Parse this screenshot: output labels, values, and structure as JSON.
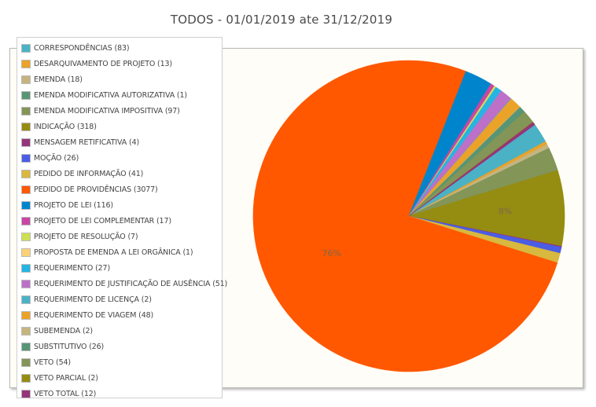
{
  "chart_data": {
    "type": "pie",
    "title": "TODOS - 01/01/2019 ate 31/12/2019",
    "start_angle_deg": -36,
    "slices": [
      {
        "label": "CORRESPONDÊNCIAS (83)",
        "value": 83,
        "color": "#4bb2c5"
      },
      {
        "label": "DESARQUIVAMENTO DE PROJETO (13)",
        "value": 13,
        "color": "#eaa228"
      },
      {
        "label": "EMENDA (18)",
        "value": 18,
        "color": "#c5b47f"
      },
      {
        "label": "EMENDA MODIFICATIVA AUTORIZATIVA (1)",
        "value": 1,
        "color": "#579575"
      },
      {
        "label": "EMENDA MODIFICATIVA IMPOSITIVA (97)",
        "value": 97,
        "color": "#839557"
      },
      {
        "label": "INDICAÇÃO (318)",
        "value": 318,
        "color": "#958c12"
      },
      {
        "label": "MENSAGEM RETIFICATIVA (4)",
        "value": 4,
        "color": "#953579"
      },
      {
        "label": "MOÇÃO (26)",
        "value": 26,
        "color": "#4b5de4"
      },
      {
        "label": "PEDIDO DE INFORMAÇÃO (41)",
        "value": 41,
        "color": "#d8b83f"
      },
      {
        "label": "PEDIDO DE PROVIDÊNCIAS (3077)",
        "value": 3077,
        "color": "#ff5800"
      },
      {
        "label": "PROJETO DE LEI (116)",
        "value": 116,
        "color": "#0085cc"
      },
      {
        "label": "PROJETO DE LEI COMPLEMENTAR (17)",
        "value": 17,
        "color": "#c747a3"
      },
      {
        "label": "PROJETO DE RESOLUÇÃO (7)",
        "value": 7,
        "color": "#cddf54"
      },
      {
        "label": "PROPOSTA DE EMENDA A LEI ORGÂNICA (1)",
        "value": 1,
        "color": "#fbd178"
      },
      {
        "label": "REQUERIMENTO (27)",
        "value": 27,
        "color": "#26b4e3"
      },
      {
        "label": "REQUERIMENTO DE JUSTIFICAÇÃO DE AUSÊNCIA (51)",
        "value": 51,
        "color": "#bd70c7"
      },
      {
        "label": "REQUERIMENTO DE LICENÇA (2)",
        "value": 2,
        "color": "#4bb2c5"
      },
      {
        "label": "REQUERIMENTO DE VIAGEM (48)",
        "value": 48,
        "color": "#eaa228"
      },
      {
        "label": "SUBEMENDA (2)",
        "value": 2,
        "color": "#c5b47f"
      },
      {
        "label": "SUBSTITUTIVO (26)",
        "value": 26,
        "color": "#579575"
      },
      {
        "label": "VETO (54)",
        "value": 54,
        "color": "#839557"
      },
      {
        "label": "VETO PARCIAL (2)",
        "value": 2,
        "color": "#958c12"
      },
      {
        "label": "VETO TOTAL (12)",
        "value": 12,
        "color": "#953579"
      }
    ],
    "percent_labels": [
      {
        "slice": "PEDIDO DE PROVIDÊNCIAS (3077)",
        "text": "76%"
      },
      {
        "slice": "INDICAÇÃO (318)",
        "text": "8%"
      }
    ],
    "legend_position": "top-left"
  }
}
